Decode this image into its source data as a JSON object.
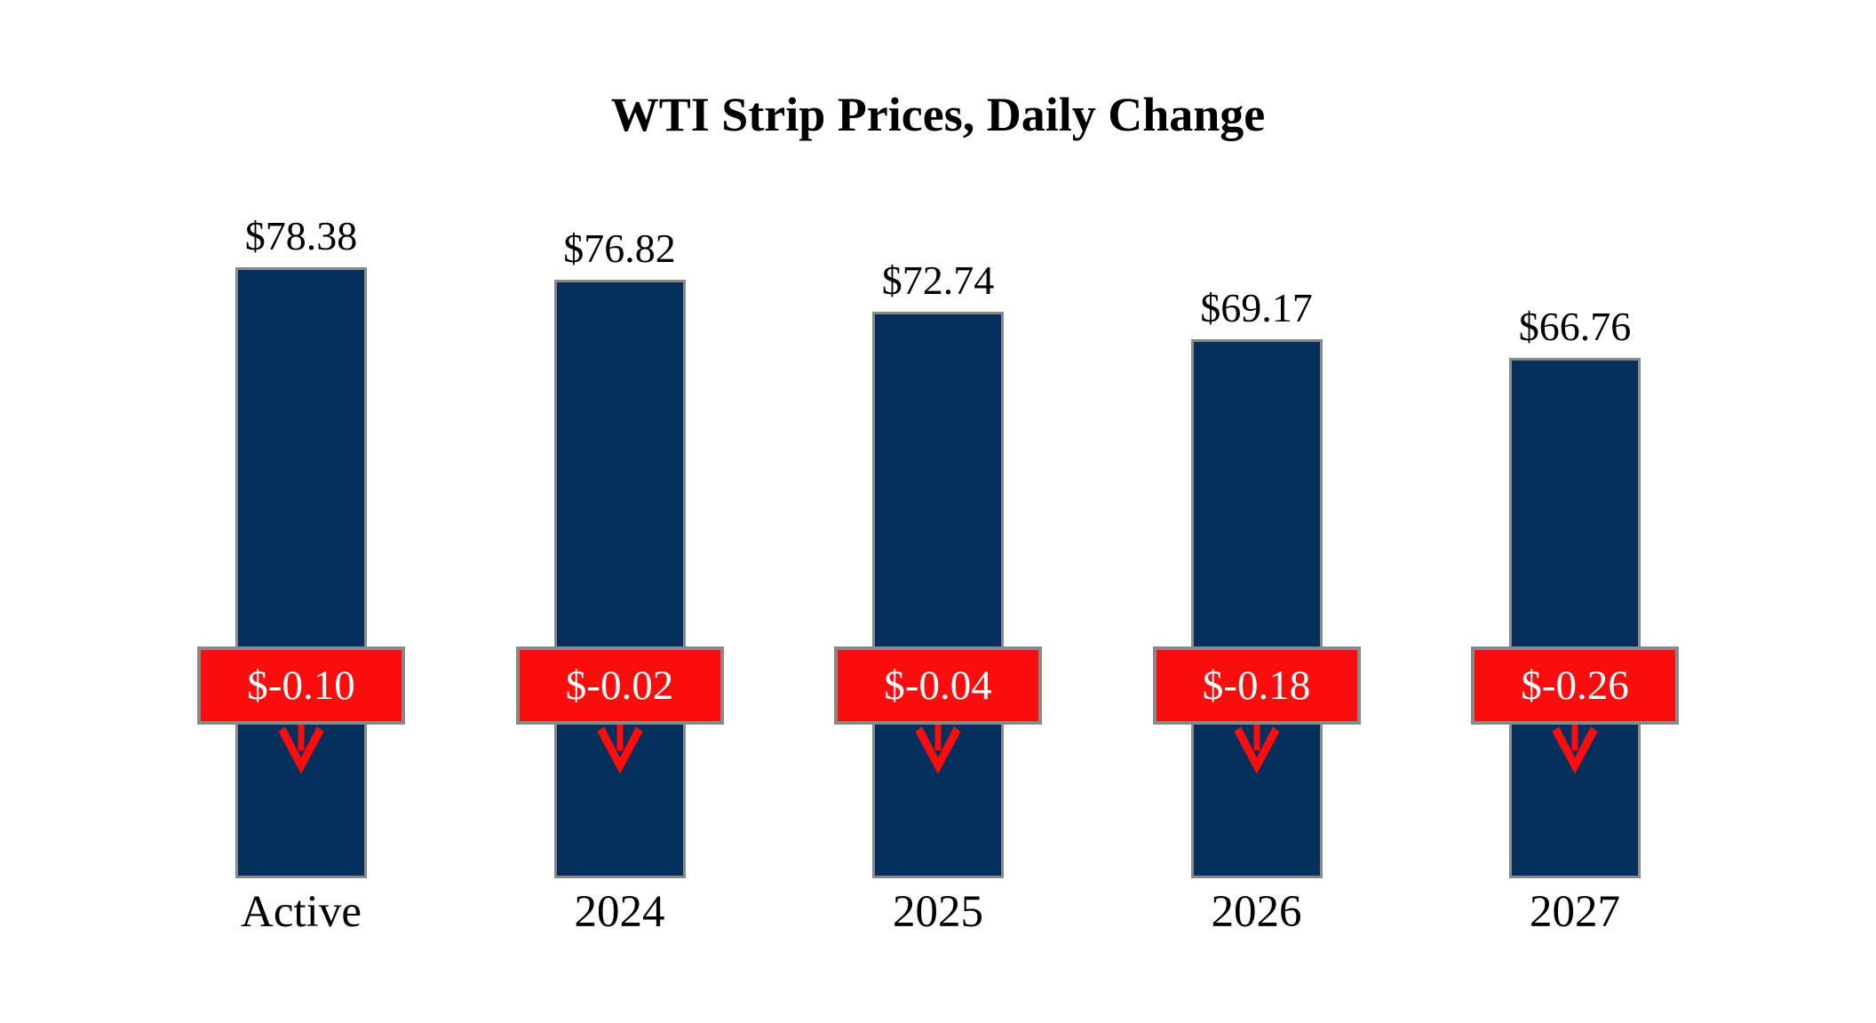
{
  "title": "WTI Strip Prices, Daily Change",
  "colors": {
    "bar_navy": "#052f5c",
    "badge_red": "#fb0d0d",
    "border_gray": "#898989",
    "text_black": "#000000",
    "badge_text_white": "#ffffff",
    "background": "#ffffff"
  },
  "chart_data": {
    "type": "bar",
    "title": "WTI Strip Prices, Daily Change",
    "categories": [
      "Active",
      "2024",
      "2025",
      "2026",
      "2027"
    ],
    "series": [
      {
        "name": "WTI Strip Price",
        "values": [
          78.38,
          76.82,
          72.74,
          69.17,
          66.76
        ],
        "labels": [
          "$78.38",
          "$76.82",
          "$72.74",
          "$69.17",
          "$66.76"
        ]
      },
      {
        "name": "Daily Change",
        "values": [
          -0.1,
          -0.02,
          -0.04,
          -0.18,
          -0.26
        ],
        "labels": [
          "$-0.10",
          "$-0.02",
          "$-0.04",
          "$-0.18",
          "$-0.26"
        ]
      }
    ],
    "ylim": [
      0,
      80
    ],
    "axes_hidden": true,
    "grid": false,
    "legend_position": "none",
    "bar_value_labels_position": "above-bar",
    "change_badge_position": "overlaid-on-bar",
    "change_direction_indicator": "down-arrow"
  }
}
